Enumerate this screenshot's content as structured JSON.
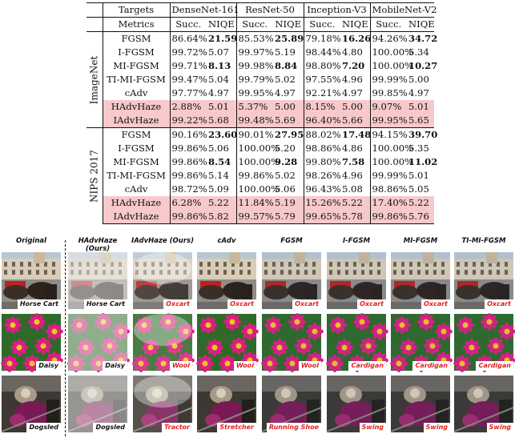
{
  "table": {
    "headers": {
      "targets_label": "Targets",
      "metrics_label": "Metrics",
      "models": [
        "DenseNet-161",
        "ResNet-50",
        "Inception-V3",
        "MobileNet-V2"
      ],
      "succ": "Succ.",
      "niqe": "NIQE"
    },
    "sections": [
      {
        "name": "ImageNet",
        "rows": [
          {
            "method": "FGSM",
            "vals": [
              "86.64%",
              "21.59",
              "85.53%",
              "25.89",
              "79.18%",
              "16.26",
              "94.26%",
              "34.72"
            ],
            "bold": [
              1,
              3,
              5,
              7
            ],
            "hl": false
          },
          {
            "method": "I-FGSM",
            "vals": [
              "99.72%",
              "5.07",
              "99.97%",
              "5.19",
              "98.44%",
              "4.80",
              "100.00%",
              "5.34"
            ],
            "bold": [],
            "hl": false
          },
          {
            "method": "MI-FGSM",
            "vals": [
              "99.71%",
              "8.13",
              "99.98%",
              "8.84",
              "98.80%",
              "7.20",
              "100.00%",
              "10.27"
            ],
            "bold": [
              1,
              3,
              5,
              7
            ],
            "hl": false
          },
          {
            "method": "TI-MI-FGSM",
            "vals": [
              "99.47%",
              "5.04",
              "99.79%",
              "5.02",
              "97.55%",
              "4.96",
              "99.99%",
              "5.00"
            ],
            "bold": [],
            "hl": false
          },
          {
            "method": "cAdv",
            "vals": [
              "97.77%",
              "4.97",
              "99.95%",
              "4.97",
              "92.21%",
              "4.97",
              "99.85%",
              "4.97"
            ],
            "bold": [],
            "hl": false
          },
          {
            "method": "HAdvHaze",
            "vals": [
              "2.88%",
              "5.01",
              "5.37%",
              "5.00",
              "8.15%",
              "5.00",
              "9.07%",
              "5.01"
            ],
            "bold": [],
            "hl": true
          },
          {
            "method": "IAdvHaze",
            "vals": [
              "99.22%",
              "5.68",
              "99.48%",
              "5.69",
              "96.40%",
              "5.66",
              "99.95%",
              "5.65"
            ],
            "bold": [],
            "hl": true
          }
        ]
      },
      {
        "name": "NIPS 2017",
        "rows": [
          {
            "method": "FGSM",
            "vals": [
              "90.16%",
              "23.60",
              "90.01%",
              "27.95",
              "88.02%",
              "17.48",
              "94.15%",
              "39.70"
            ],
            "bold": [
              1,
              3,
              5,
              7
            ],
            "hl": false
          },
          {
            "method": "I-FGSM",
            "vals": [
              "99.86%",
              "5.06",
              "100.00%",
              "5.20",
              "98.86%",
              "4.86",
              "100.00%",
              "5.35"
            ],
            "bold": [],
            "hl": false
          },
          {
            "method": "MI-FGSM",
            "vals": [
              "99.86%",
              "8.54",
              "100.00%",
              "9.28",
              "99.80%",
              "7.58",
              "100.00%",
              "11.02"
            ],
            "bold": [
              1,
              3,
              5,
              7
            ],
            "hl": false
          },
          {
            "method": "TI-MI-FGSM",
            "vals": [
              "99.86%",
              "5.14",
              "99.86%",
              "5.02",
              "98.26%",
              "4.96",
              "99.99%",
              "5.01"
            ],
            "bold": [],
            "hl": false
          },
          {
            "method": "cAdv",
            "vals": [
              "98.72%",
              "5.09",
              "100.00%",
              "5.06",
              "96.43%",
              "5.08",
              "98.86%",
              "5.05"
            ],
            "bold": [],
            "hl": false
          },
          {
            "method": "HAdvHaze",
            "vals": [
              "6.28%",
              "5.22",
              "11.84%",
              "5.19",
              "15.26%",
              "5.22",
              "17.40%",
              "5.22"
            ],
            "bold": [],
            "hl": true
          },
          {
            "method": "IAdvHaze",
            "vals": [
              "99.86%",
              "5.82",
              "99.57%",
              "5.79",
              "99.65%",
              "5.78",
              "99.86%",
              "5.76"
            ],
            "bold": [],
            "hl": true
          }
        ]
      }
    ]
  },
  "grid": {
    "columns": [
      "Original",
      "HAdvHaze (Ours)",
      "IAdvHaze (Ours)",
      "cAdv",
      "FGSM",
      "I-FGSM",
      "MI-FGSM",
      "TI-MI-FGSM"
    ],
    "rows": [
      {
        "scene": "horse-cart",
        "labels": [
          "Horse Cart",
          "Horse Cart",
          "Oxcart",
          "Oxcart",
          "Oxcart",
          "Oxcart",
          "Oxcart",
          "Oxcart"
        ]
      },
      {
        "scene": "daisy",
        "labels": [
          "Daisy",
          "Daisy",
          "Wool",
          "Wool",
          "Wool",
          "Cardigan",
          "Cardigan",
          "Cardigan"
        ]
      },
      {
        "scene": "dogsled",
        "labels": [
          "Dogsled",
          "Dogsled",
          "Tractor",
          "Stretcher",
          "Running Shoe",
          "Swing",
          "Swing",
          "Swing"
        ]
      }
    ],
    "label_colors": {
      "correct": "#111111",
      "fooled": "#e02222"
    },
    "highlight_color": "#f7c9cb"
  }
}
